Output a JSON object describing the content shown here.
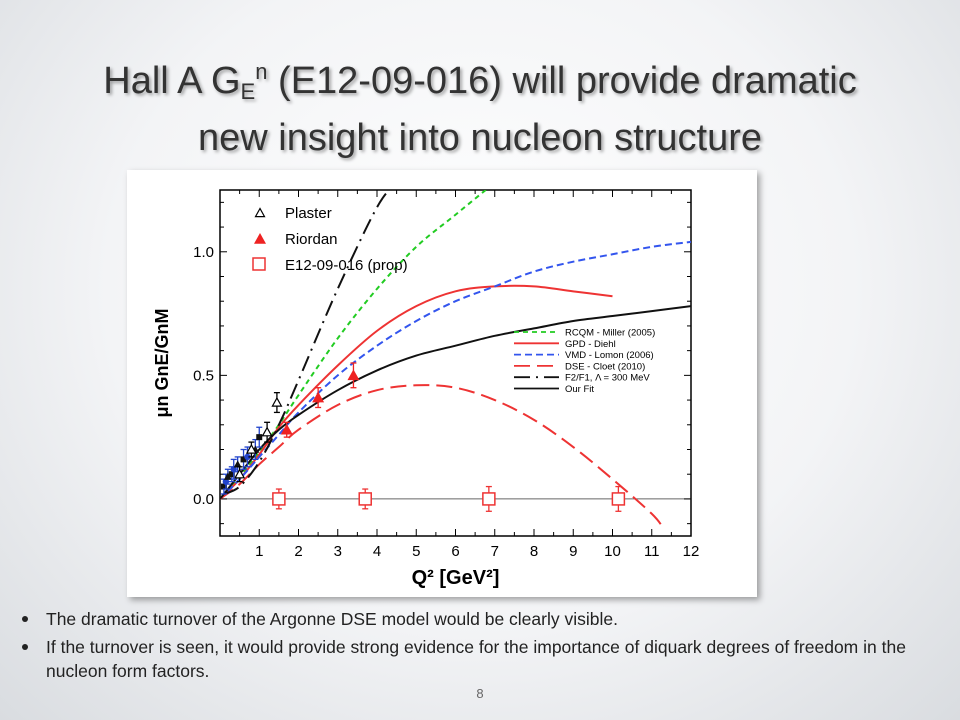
{
  "slide": {
    "title_part1": "Hall A G",
    "title_sub": "E",
    "title_sup": "n",
    "title_part2": " (E12-09-016)  will provide dramatic",
    "title_line2": "new insight into nucleon structure",
    "bullets": [
      "The dramatic turnover of the Argonne DSE model would be clearly visible.",
      "If the turnover is seen, it would provide strong evidence for the importance of diquark degrees of freedom in the nucleon form factors."
    ],
    "page_number": "8"
  },
  "chart_data": {
    "type": "line",
    "xlim": [
      0,
      12
    ],
    "ylim": [
      -0.15,
      1.25
    ],
    "xticks": [
      "1",
      "2",
      "3",
      "4",
      "5",
      "6",
      "7",
      "8",
      "9",
      "10",
      "11",
      "12"
    ],
    "yticks": [
      "0.0",
      "0.5",
      "1.0"
    ],
    "xlabel": "Q² [GeV²]",
    "ylabel": "μn GnE/GnM",
    "legend_points": [
      "Plaster",
      "Riordan",
      "E12-09-016 (prop)"
    ],
    "legend_lines": [
      "RCQM - Miller (2005)",
      "GPD - Diehl",
      "VMD - Lomon (2006)",
      "DSE - Cloet (2010)",
      "F2/F1, Λ = 300 MeV",
      "Our Fit"
    ],
    "colors": {
      "rcqm": "#22cc22",
      "gpd": "#ee3333",
      "vmd": "#3355ee",
      "dse": "#ee3333",
      "f2f1": "#111111",
      "fit": "#111111",
      "riordan": "#ee2222",
      "prop": "#ee3333",
      "low_q2": "#2244cc"
    },
    "series": [
      {
        "name": "RCQM - Miller (2005)",
        "style": "dashed",
        "x": [
          0,
          0.5,
          1,
          1.5,
          2,
          3,
          4,
          5,
          6,
          7
        ],
        "y": [
          0,
          0.09,
          0.19,
          0.3,
          0.42,
          0.65,
          0.85,
          1.02,
          1.15,
          1.28
        ]
      },
      {
        "name": "GPD - Diehl",
        "style": "solid",
        "x": [
          0,
          0.5,
          1,
          1.5,
          2,
          3,
          4,
          5,
          6,
          7,
          8,
          9,
          10
        ],
        "y": [
          0,
          0.08,
          0.18,
          0.29,
          0.38,
          0.54,
          0.68,
          0.78,
          0.84,
          0.86,
          0.86,
          0.84,
          0.82
        ]
      },
      {
        "name": "VMD - Lomon (2006)",
        "style": "dashed",
        "x": [
          0,
          0.5,
          1,
          1.5,
          2,
          3,
          4,
          5,
          6,
          7,
          8,
          9,
          10,
          11,
          12
        ],
        "y": [
          0,
          0.08,
          0.17,
          0.26,
          0.35,
          0.5,
          0.62,
          0.72,
          0.8,
          0.86,
          0.92,
          0.96,
          0.99,
          1.02,
          1.04
        ]
      },
      {
        "name": "DSE - Cloet (2010)",
        "style": "longdash",
        "x": [
          0,
          0.5,
          1,
          1.5,
          2,
          3,
          4,
          5,
          6,
          7,
          8,
          9,
          10,
          11,
          11.3
        ],
        "y": [
          0,
          0.06,
          0.14,
          0.21,
          0.28,
          0.38,
          0.44,
          0.46,
          0.45,
          0.4,
          0.32,
          0.21,
          0.08,
          -0.06,
          -0.12
        ]
      },
      {
        "name": "F2/F1, Λ = 300 MeV",
        "style": "dashdot",
        "x": [
          0.1,
          0.5,
          1,
          1.5,
          2,
          3,
          4,
          4.5
        ],
        "y": [
          0.02,
          0.05,
          0.15,
          0.3,
          0.48,
          0.85,
          1.18,
          1.28
        ]
      },
      {
        "name": "Our Fit",
        "style": "solid",
        "x": [
          0,
          0.5,
          1,
          1.5,
          2,
          3,
          4,
          5,
          6,
          7,
          8,
          9,
          10,
          11,
          12
        ],
        "y": [
          0,
          0.1,
          0.2,
          0.28,
          0.34,
          0.44,
          0.52,
          0.58,
          0.62,
          0.66,
          0.69,
          0.72,
          0.74,
          0.76,
          0.78
        ]
      }
    ],
    "points": {
      "Plaster": {
        "x": [
          0.5,
          0.8,
          1.2,
          1.45
        ],
        "y": [
          0.1,
          0.2,
          0.27,
          0.39
        ],
        "err": [
          0.03,
          0.03,
          0.04,
          0.04
        ]
      },
      "Riordan": {
        "x": [
          1.7,
          2.5,
          3.4
        ],
        "y": [
          0.28,
          0.41,
          0.5
        ],
        "err": [
          0.03,
          0.04,
          0.05
        ]
      },
      "E12-09-016 (prop)": {
        "x": [
          1.5,
          3.7,
          6.85,
          10.15
        ],
        "y": [
          0.0,
          0.0,
          0.0,
          0.0
        ],
        "err": [
          0.04,
          0.04,
          0.05,
          0.05
        ]
      },
      "low_q2": {
        "x": [
          0.1,
          0.15,
          0.2,
          0.3,
          0.35,
          0.45,
          0.6,
          0.7,
          0.9,
          1.0
        ],
        "y": [
          0.05,
          0.07,
          0.09,
          0.1,
          0.12,
          0.14,
          0.16,
          0.17,
          0.2,
          0.25
        ],
        "err": [
          0.03,
          0.03,
          0.03,
          0.03,
          0.04,
          0.03,
          0.04,
          0.04,
          0.04,
          0.04
        ]
      }
    }
  }
}
